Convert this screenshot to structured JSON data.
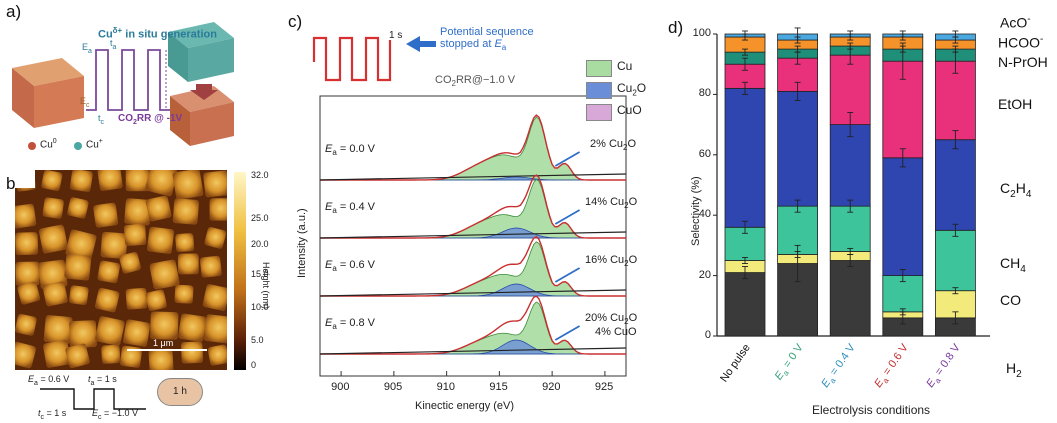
{
  "panels": {
    "a": {
      "label": "a)",
      "title": "Cu",
      "title_sup": "δ+",
      "title_rest": " in situ generation",
      "ea": "E",
      "ea_sub": "a",
      "ta": "t",
      "ta_sub": "a",
      "ec": "E",
      "ec_sub": "c",
      "tc": "t",
      "tc_sub": "c",
      "co2rr": "CO",
      "co2rr_sub": "2",
      "co2rr_rest": "RR @ -1V",
      "legend_cu0": "Cu",
      "legend_cu0_sup": "0",
      "legend_cup": "Cu",
      "legend_cup_sup": "+",
      "colors": {
        "cu0": "#c0503a",
        "cup": "#4aa6a2",
        "wave": "#7a4a9a",
        "arrow": "#a04040"
      }
    },
    "b": {
      "label": "b)",
      "colorbar_ticks": [
        "32.0",
        "25.0",
        "20.0",
        "15.0",
        "10.0",
        "5.0",
        "0"
      ],
      "colorbar_label": "Height (nm)",
      "scalebar": "1 μm",
      "badge": "1 h",
      "ea_eq": "= 0.6 V",
      "ta_eq": "= 1 s",
      "tc_eq": "= 1 s",
      "ec_eq": "= −1.0 V"
    },
    "c": {
      "label": "c)",
      "wave_label": "1 s",
      "note_line1": "Potential sequence",
      "note_line2": "stopped at",
      "note_ea": "E",
      "note_ea_sub": "a",
      "condition": "CO",
      "condition_sub": "2",
      "condition_rest": "RR@−1.0 V",
      "legend": [
        {
          "name": "Cu",
          "color": "#a8dca0"
        },
        {
          "name": "Cu",
          "sub": "2",
          "name_rest": "O",
          "color": "#6a8ed8"
        },
        {
          "name": "CuO",
          "color": "#d8a8d8"
        }
      ],
      "ylabel": "Intensity (a.u.)",
      "xlabel": "Kinectic energy (eV)",
      "xticks": [
        "900",
        "905",
        "910",
        "915",
        "920",
        "925"
      ],
      "traces": [
        {
          "ea": "= 0.0 V",
          "note": "2% Cu",
          "note_sub": "2",
          "note_rest": "O"
        },
        {
          "ea": "= 0.4 V",
          "note": "14% Cu",
          "note_sub": "2",
          "note_rest": "O"
        },
        {
          "ea": "= 0.6 V",
          "note": "16% Cu",
          "note_sub": "2",
          "note_rest": "O"
        },
        {
          "ea": "= 0.8 V",
          "note": "20% Cu",
          "note_sub": "2",
          "note_rest": "O",
          "note2": "4% CuO"
        }
      ]
    },
    "d": {
      "label": "d)"
    }
  },
  "chart_data": {
    "type": "bar",
    "stacked": true,
    "ylabel": "Selectivity (%)",
    "xlabel": "Electrolysis conditions",
    "ylim": [
      0,
      100
    ],
    "yticks": [
      "0",
      "20",
      "40",
      "60",
      "80",
      "100"
    ],
    "categories": [
      "No pulse",
      "E = 0 V",
      "E = 0.4 V",
      "E = 0.6 V",
      "E = 0.8 V"
    ],
    "category_display": [
      {
        "text": "No pulse",
        "color": "#111111"
      },
      {
        "text": "E",
        "sub": "a",
        "rest": " = 0 V",
        "color": "#3aa37a"
      },
      {
        "text": "E",
        "sub": "a",
        "rest": " = 0.4 V",
        "color": "#2f8fc0"
      },
      {
        "text": "E",
        "sub": "a",
        "rest": " = 0.6 V",
        "color": "#c03030"
      },
      {
        "text": "E",
        "sub": "a",
        "rest": " = 0.8 V",
        "color": "#7a3aa0"
      }
    ],
    "series": [
      {
        "name": "H2",
        "label": "H",
        "label_sub": "2",
        "color": "#3a3a3a",
        "values": [
          21,
          24,
          25,
          6,
          6
        ],
        "err": [
          2,
          6,
          2,
          2,
          2
        ]
      },
      {
        "name": "CO",
        "label": "CO",
        "color": "#f2ea7a",
        "values": [
          4,
          3,
          3,
          2,
          9
        ],
        "err": [
          1,
          1,
          1,
          1,
          1
        ]
      },
      {
        "name": "CH4",
        "label": "CH",
        "label_sub": "4",
        "color": "#3ec49a",
        "values": [
          11,
          16,
          15,
          12,
          20
        ],
        "err": [
          2,
          2,
          2,
          2,
          2
        ]
      },
      {
        "name": "C2H4",
        "label": "C",
        "label_sub": "2",
        "label_rest": "H",
        "label_sub2": "4",
        "color": "#2f45b0",
        "values": [
          46,
          38,
          27,
          39,
          30
        ],
        "err": [
          2,
          3,
          4,
          3,
          3
        ]
      },
      {
        "name": "EtOH",
        "label": "EtOH",
        "color": "#e8317a",
        "values": [
          8,
          11,
          23,
          32,
          26
        ],
        "err": [
          2,
          2,
          3,
          6,
          4
        ]
      },
      {
        "name": "N-PrOH",
        "label": "N-PrOH",
        "color": "#1f8f7a",
        "values": [
          4,
          3,
          3,
          4,
          4
        ],
        "err": [
          1,
          1,
          1,
          1,
          1
        ]
      },
      {
        "name": "HCOO-",
        "label": "HCOO",
        "label_sup": "-",
        "color": "#f5922a",
        "values": [
          5,
          3,
          3,
          4,
          3
        ],
        "err": [
          1,
          1,
          1,
          1,
          1
        ]
      },
      {
        "name": "AcO-",
        "label": "AcO",
        "label_sup": "-",
        "color": "#4aa8e0",
        "values": [
          1,
          2,
          1,
          1,
          2
        ],
        "err": [
          1,
          2,
          1,
          1,
          1
        ]
      }
    ]
  }
}
